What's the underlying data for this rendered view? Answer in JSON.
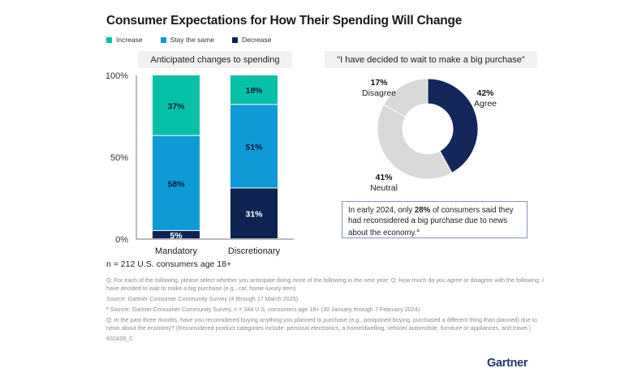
{
  "title": "Consumer Expectations for How Their Spending Will Change",
  "colors": {
    "increase": "#06c1a8",
    "stay": "#0e9ad7",
    "decrease": "#0d2452",
    "neutral_gray": "#d9d9d9",
    "agree": "#13275a"
  },
  "chart_data": [
    {
      "type": "bar",
      "stacked": true,
      "title": "Anticipated changes to spending",
      "categories": [
        "Mandatory",
        "Discretionary"
      ],
      "series": [
        {
          "name": "Decrease",
          "values": [
            5,
            31
          ],
          "labels": [
            "5%",
            "31%"
          ]
        },
        {
          "name": "Stay the same",
          "values": [
            58,
            51
          ],
          "labels": [
            "58%",
            "51%"
          ]
        },
        {
          "name": "Increase",
          "values": [
            37,
            18
          ],
          "labels": [
            "37%",
            "18%"
          ]
        }
      ],
      "ylim": [
        0,
        100
      ],
      "yticks": [
        "0%",
        "50%",
        "100%"
      ],
      "legend": [
        "Increase",
        "Stay the same",
        "Decrease"
      ],
      "legend_position": "top-left",
      "note": "n = 212 U.S. consumers age 18+"
    },
    {
      "type": "pie",
      "donut": true,
      "title": "\"I have decided to wait to make a big purchase\"",
      "slices": [
        {
          "name": "Agree",
          "value": 42,
          "label": "42%"
        },
        {
          "name": "Neutral",
          "value": 41,
          "label": "41%"
        },
        {
          "name": "Disagree",
          "value": 17,
          "label": "17%"
        }
      ]
    }
  ],
  "callout": {
    "prefix": "In early 2024, only ",
    "highlight": "28%",
    "suffix": " of consumers said they had reconsidered a big purchase due to news about the economy.",
    "footnote_mark": "a"
  },
  "footer": [
    "Q: For each of the following, please select whether you anticipate doing more of the following in the next year; Q: How much do you agree or disagree with the following: I have decided to wait to make a big purchase (e.g., car, home luxury item)",
    "Source: Gartner Consumer Community Survey (4 through 17 March 2025)",
    "ª Source: Gartner Consumer Community Survey, n = 344 U.S. consumers age 18+ (30 January through 7 February 2024)",
    "Q: In the past three months, have you reconsidered buying anything you planned to purchase (e.g., postponed buying, purchased a different thing than planned) due to news about the economy? (Reconsidered product categories include: personal electronics, a home/dwelling, vehicle/ automobile, furniture or appliances, and travel.)",
    "832428_C"
  ],
  "logo": "Gartner"
}
